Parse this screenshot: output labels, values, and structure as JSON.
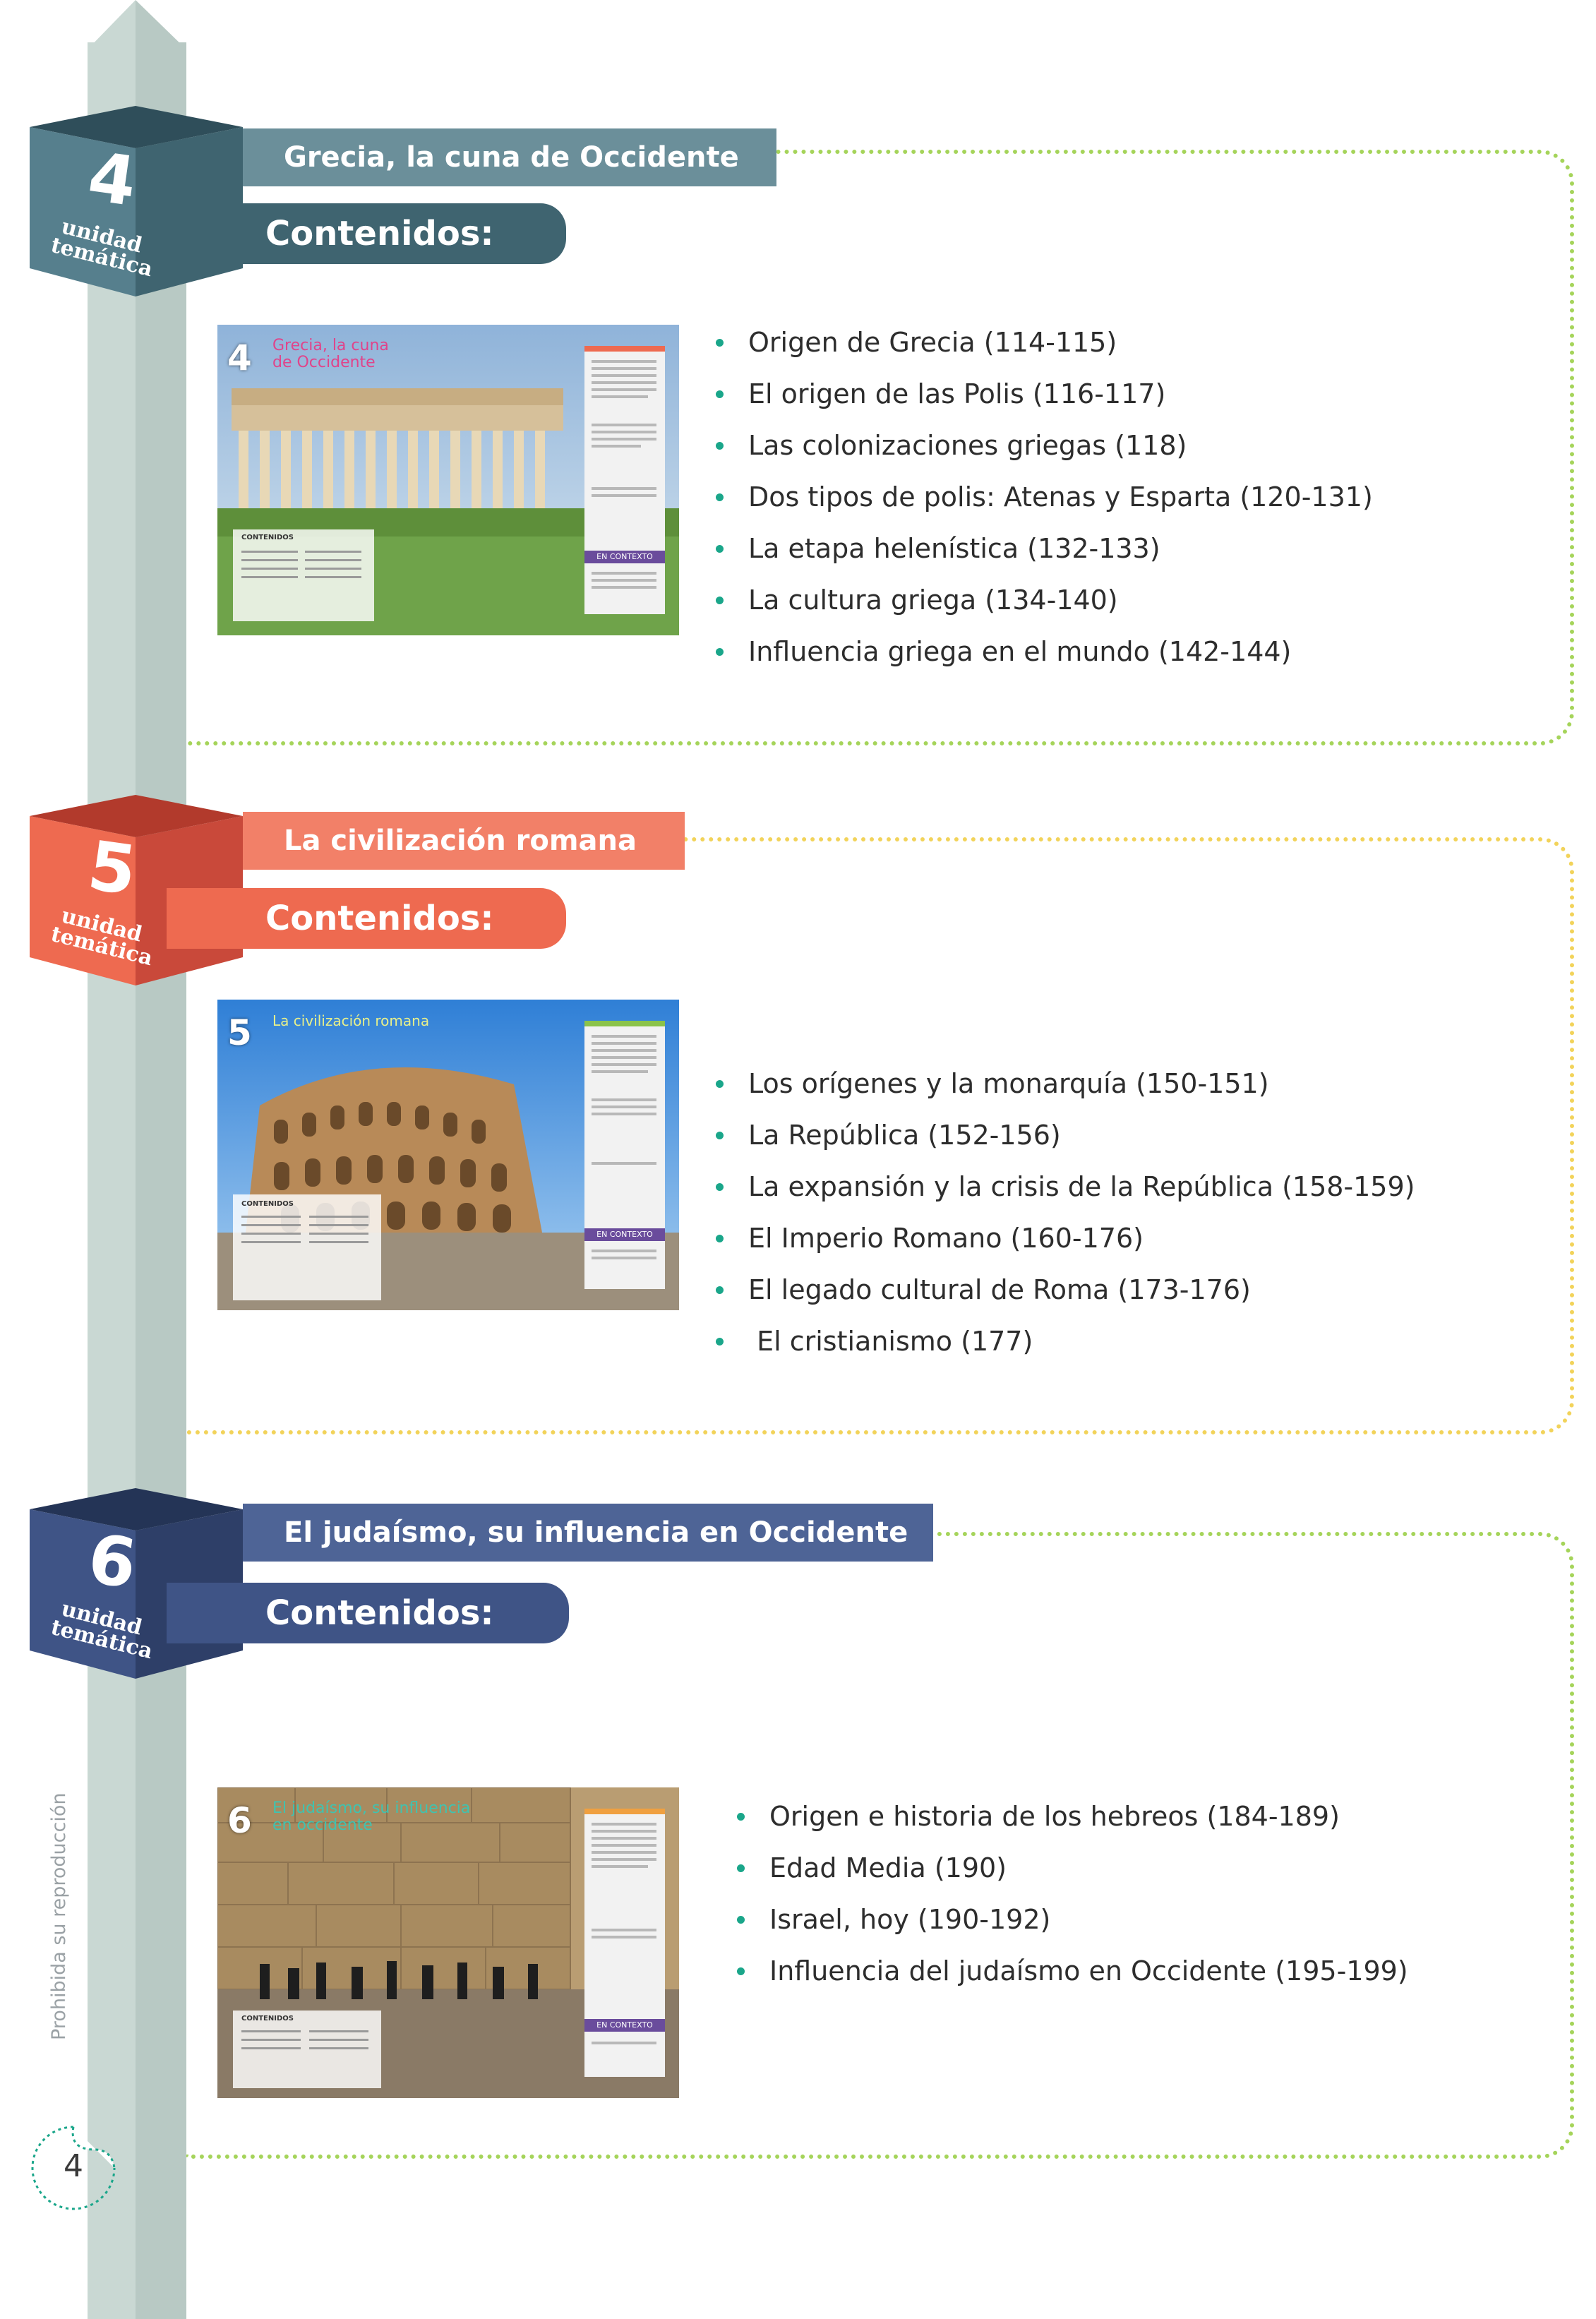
{
  "units": [
    {
      "number": "4",
      "unit_word_1": "unidad",
      "unit_word_2": "temática",
      "title": "Grecia, la cuna de Occidente",
      "contents_label": "Contenidos:",
      "thumb_title": "Grecia, la cuna de Occidente",
      "thumb_contents_label": "CONTENIDOS",
      "thumb_context_label": "EN CONTEXTO",
      "topics": [
        "Origen de Grecia (114-115)",
        "El origen de las Polis (116-117)",
        "Las colonizaciones griegas (118)",
        "Dos tipos de polis: Atenas y Esparta (120-131)",
        "La etapa helenística (132-133)",
        "La cultura griega (134-140)",
        "Influencia griega en el mundo (142-144)"
      ],
      "colors": {
        "dark": "#3f6470",
        "main": "#567f8d",
        "light": "#6b8f9a",
        "frame": "#9ccf49"
      }
    },
    {
      "number": "5",
      "unit_word_1": "unidad",
      "unit_word_2": "temática",
      "title": "La civilización romana",
      "contents_label": "Contenidos:",
      "thumb_title": "La civilización romana",
      "thumb_contents_label": "CONTENIDOS",
      "thumb_context_label": "EN CONTEXTO",
      "topics": [
        "Los orígenes y la monarquía (150-151)",
        "La República (152-156)",
        "La expansión y la crisis de la República (158-159)",
        "El Imperio Romano (160-176)",
        "El legado cultural de Roma (173-176)",
        " El cristianismo (177)"
      ],
      "colors": {
        "dark": "#c9493a",
        "main": "#ee6a50",
        "light": "#f28068",
        "frame": "#f2d35a"
      }
    },
    {
      "number": "6",
      "unit_word_1": "unidad",
      "unit_word_2": "temática",
      "title": "El judaísmo, su influencia en Occidente",
      "contents_label": "Contenidos:",
      "thumb_title": "El judaísmo, su influencia en occidente",
      "thumb_contents_label": "CONTENIDOS",
      "thumb_context_label": "EN CONTEXTO",
      "topics": [
        "Origen e historia de los hebreos (184-189)",
        "Edad Media (190)",
        "Israel, hoy (190-192)",
        "Influencia del judaísmo en Occidente (195-199)"
      ],
      "colors": {
        "dark": "#2e3f68",
        "main": "#3f5486",
        "light": "#4e6496",
        "frame": "#9ccf49"
      }
    }
  ],
  "side_note": "Prohibida su reproducción",
  "page_number": "4"
}
